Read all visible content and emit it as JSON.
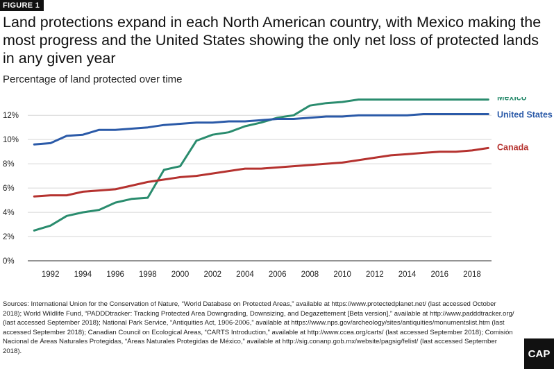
{
  "figure_label": "FIGURE 1",
  "title": "Land protections expand in each North American country, with Mexico making the most progress and the United States showing the only net loss of protected lands in any given year",
  "subtitle": "Percentage of land protected over time",
  "sources": "Sources: International Union for the Conservation of Nature, “World Database on Protected Areas,” available at https://www.protectedplanet.net/ (last accessed October 2018); World Wildlife Fund, “PADDDtracker: Tracking Protected Area Downgrading, Downsizing, and Degazettement [Beta version],” available at http://www.padddtracker.org/ (last accessed September 2018); National Park Service, “Antiquities Act, 1906-2006,” available at https://www.nps.gov/archeology/sites/antiquities/monumentslist.htm (last accessed September 2018); Canadian Council on Ecological Areas, “CARTS Introduction,” available at http://www.ccea.org/carts/ (last accessed September 2018); Comisión Nacional de Áreas Naturales Protegidas, “Áreas Naturales Protegidas de México,” available at http://sig.conanp.gob.mx/website/pagsig/felist/ (last accessed September 2018).",
  "logo_text": "CAP",
  "chart_data": {
    "type": "line",
    "title": "Percentage of land protected over time",
    "x": [
      1991,
      1992,
      1993,
      1994,
      1995,
      1996,
      1997,
      1998,
      1999,
      2000,
      2001,
      2002,
      2003,
      2004,
      2005,
      2006,
      2007,
      2008,
      2009,
      2010,
      2011,
      2012,
      2013,
      2014,
      2015,
      2016,
      2017,
      2018,
      2019
    ],
    "x_ticks": [
      1992,
      1994,
      1996,
      1998,
      2000,
      2002,
      2004,
      2006,
      2008,
      2010,
      2012,
      2014,
      2016,
      2018
    ],
    "y_ticks": [
      0,
      2,
      4,
      6,
      8,
      10,
      12
    ],
    "y_tick_labels": [
      "0%",
      "2%",
      "4%",
      "6%",
      "8%",
      "10%",
      "12%"
    ],
    "ylim": [
      0,
      13.5
    ],
    "xlim": [
      1990.6,
      2019.2
    ],
    "grid": true,
    "series": [
      {
        "name": "Mexico",
        "color": "#2a8c6e",
        "values": [
          2.5,
          2.9,
          3.7,
          4.0,
          4.2,
          4.8,
          5.1,
          5.2,
          7.5,
          7.8,
          9.9,
          10.4,
          10.6,
          11.1,
          11.4,
          11.8,
          12.0,
          12.8,
          13.0,
          13.1,
          13.3,
          13.3,
          13.3,
          13.3,
          13.3,
          13.3,
          13.3,
          13.3,
          13.3
        ]
      },
      {
        "name": "United States",
        "color": "#2b5aa8",
        "values": [
          9.6,
          9.7,
          10.3,
          10.4,
          10.8,
          10.8,
          10.9,
          11.0,
          11.2,
          11.3,
          11.4,
          11.4,
          11.5,
          11.5,
          11.6,
          11.7,
          11.7,
          11.8,
          11.9,
          11.9,
          12.0,
          12.0,
          12.0,
          12.0,
          12.1,
          12.1,
          12.1,
          12.1,
          12.1
        ]
      },
      {
        "name": "Canada",
        "color": "#b5322f",
        "values": [
          5.3,
          5.4,
          5.4,
          5.7,
          5.8,
          5.9,
          6.2,
          6.5,
          6.7,
          6.9,
          7.0,
          7.2,
          7.4,
          7.6,
          7.6,
          7.7,
          7.8,
          7.9,
          8.0,
          8.1,
          8.3,
          8.5,
          8.7,
          8.8,
          8.9,
          9.0,
          9.0,
          9.1,
          9.3
        ]
      }
    ]
  }
}
